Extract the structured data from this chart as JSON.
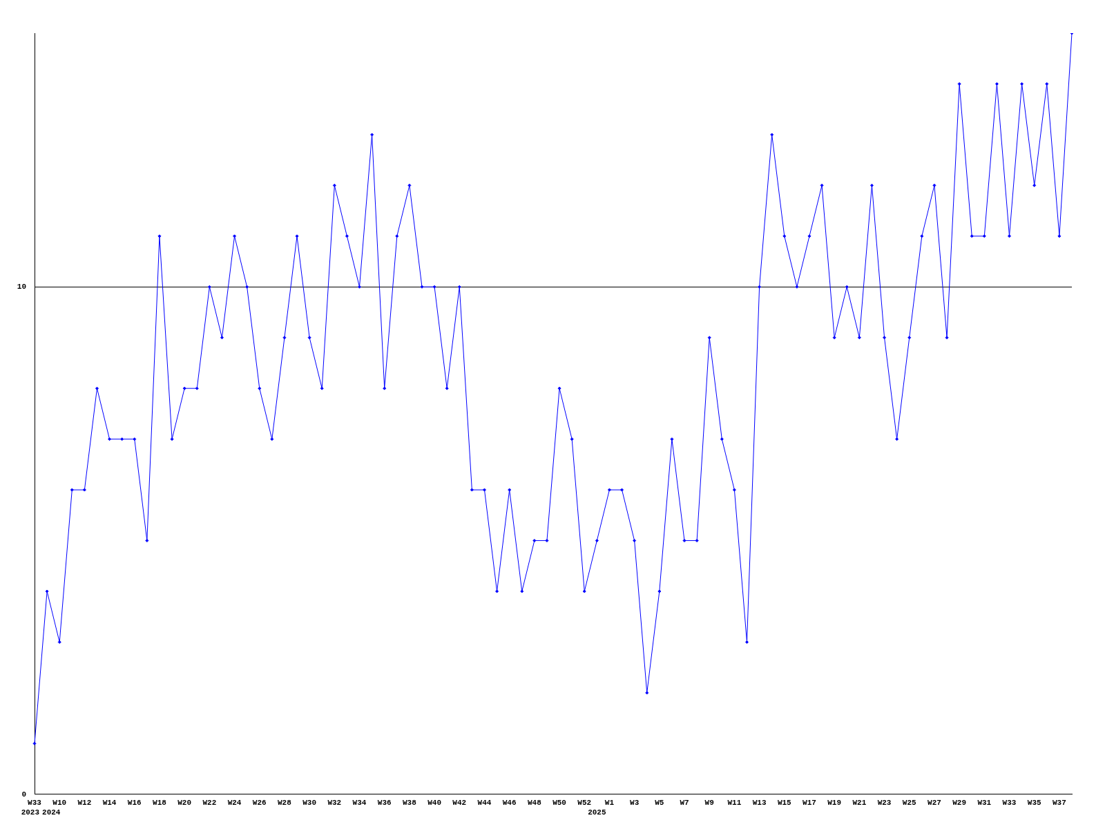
{
  "chart_data": {
    "type": "line",
    "categories": [
      "W33\n2023",
      "\n2024",
      "W10",
      null,
      "W12",
      null,
      "W14",
      null,
      "W16",
      null,
      "W18",
      null,
      "W20",
      null,
      "W22",
      null,
      "W24",
      null,
      "W26",
      null,
      "W28",
      null,
      "W30",
      null,
      "W32",
      null,
      "W34",
      null,
      "W36",
      null,
      "W38",
      null,
      "W40",
      null,
      "W42",
      null,
      "W44",
      null,
      "W46",
      null,
      "W48",
      null,
      "W50",
      null,
      "W52",
      "\n2025",
      "W1",
      null,
      "W3",
      null,
      "W5",
      null,
      "W7",
      null,
      "W9",
      null,
      "W11",
      null,
      "W13",
      null,
      "W15",
      null,
      "W17",
      null,
      "W19",
      null,
      "W21",
      null,
      "W23",
      null,
      "W25",
      null,
      "W27",
      null,
      "W29",
      null,
      "W31",
      null,
      "W33",
      null,
      "W35",
      null,
      "W37",
      null
    ],
    "series": [
      {
        "color": "#0000ff",
        "values": [
          1,
          4,
          3,
          6,
          6,
          8,
          7,
          7,
          7,
          5,
          11,
          7,
          8,
          8,
          10,
          9,
          11,
          10,
          8,
          7,
          9,
          11,
          9,
          8,
          12,
          11,
          10,
          13,
          8,
          11,
          12,
          10,
          10,
          8,
          10,
          6,
          6,
          4,
          6,
          4,
          5,
          5,
          8,
          7,
          4,
          5,
          6,
          6,
          5,
          2,
          4,
          7,
          5,
          5,
          9,
          7,
          6,
          3,
          10,
          13,
          11,
          10,
          11,
          12,
          9,
          10,
          9,
          12,
          9,
          7,
          9,
          11,
          12,
          9,
          14,
          11,
          11,
          14,
          11,
          14,
          12,
          14,
          11,
          15
        ]
      }
    ],
    "ylim": [
      0,
      15
    ],
    "yticks": [
      0,
      10
    ],
    "grid": "y",
    "legend": false,
    "marker": "diamond",
    "line_style": "solid"
  }
}
